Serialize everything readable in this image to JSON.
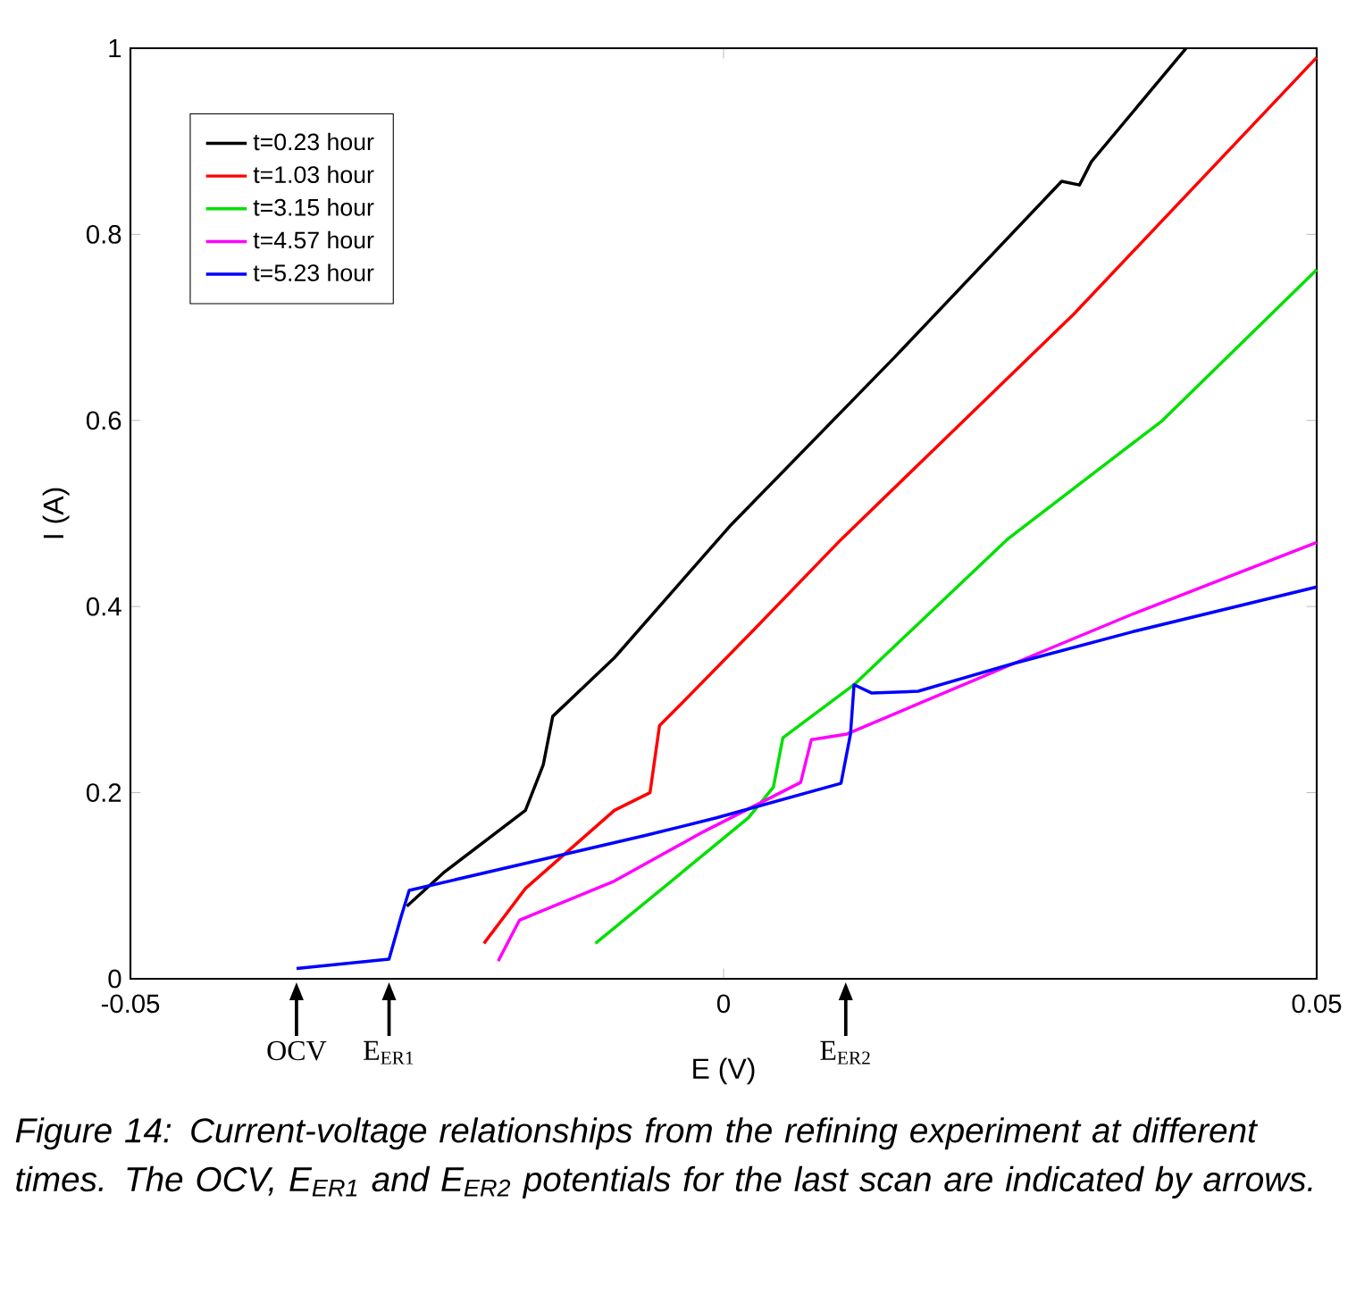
{
  "chart_data": {
    "type": "line",
    "xlabel": "E (V)",
    "ylabel": "I (A)",
    "xlim": [
      -0.05,
      0.05
    ],
    "xticks": [
      -0.05,
      0,
      0.05
    ],
    "ylim": [
      0,
      1
    ],
    "yticks": [
      0,
      0.2,
      0.4,
      0.6,
      0.8,
      1
    ],
    "grid": false,
    "legend": "top left",
    "marker": "none",
    "line_style": "solid",
    "series": [
      {
        "name": "t=0.23 hour",
        "color": "#000000",
        "x": [
          -0.0267,
          -0.0236,
          -0.0167,
          -0.0152,
          -0.0144,
          -0.0092,
          0.0005,
          0.0145,
          0.0285,
          0.03,
          0.031,
          0.039
        ],
        "values": [
          0.078,
          0.114,
          0.181,
          0.23,
          0.282,
          0.345,
          0.486,
          0.669,
          0.857,
          0.853,
          0.878,
          1.0
        ]
      },
      {
        "name": "t=1.03 hour",
        "color": "#ff0000",
        "x": [
          -0.0202,
          -0.0167,
          -0.0092,
          -0.0062,
          -0.0054,
          -0.0036,
          0.0024,
          0.0099,
          0.0295,
          0.05
        ],
        "values": [
          0.038,
          0.097,
          0.181,
          0.2,
          0.272,
          0.295,
          0.373,
          0.472,
          0.714,
          0.99
        ]
      },
      {
        "name": "t=3.15 hour",
        "color": "#00e000",
        "x": [
          -0.0108,
          0.0021,
          0.0042,
          0.005,
          0.011,
          0.0239,
          0.037,
          0.05
        ],
        "values": [
          0.038,
          0.173,
          0.206,
          0.259,
          0.316,
          0.472,
          0.6,
          0.762
        ]
      },
      {
        "name": "t=4.57 hour",
        "color": "#ff00ff",
        "x": [
          -0.019,
          -0.0172,
          -0.0092,
          -0.0017,
          0.0065,
          0.0074,
          0.0104,
          0.0245,
          0.0345,
          0.05
        ],
        "values": [
          0.019,
          0.063,
          0.105,
          0.158,
          0.211,
          0.257,
          0.263,
          0.339,
          0.392,
          0.469
        ]
      },
      {
        "name": "t=5.23 hour",
        "color": "#0000ff",
        "x": [
          -0.036,
          -0.0282,
          -0.0272,
          -0.0265,
          -0.0167,
          -0.0066,
          -0.0006,
          0.0099,
          0.0107,
          0.011,
          0.0125,
          0.0164,
          0.0245,
          0.0345,
          0.05
        ],
        "values": [
          0.011,
          0.021,
          0.066,
          0.095,
          0.124,
          0.154,
          0.173,
          0.21,
          0.263,
          0.316,
          0.307,
          0.309,
          0.339,
          0.373,
          0.421
        ]
      }
    ],
    "annotations": [
      "OCV",
      "E$_{ER1}$",
      "E$_{ER2}$",
      "Figure 14: Current-voltage relationships from the refining experiment at different times.  The OCV, E$_{ER1}$ and E$_{ER2}$ potentials for the last scan are indicated by arrows."
    ]
  }
}
